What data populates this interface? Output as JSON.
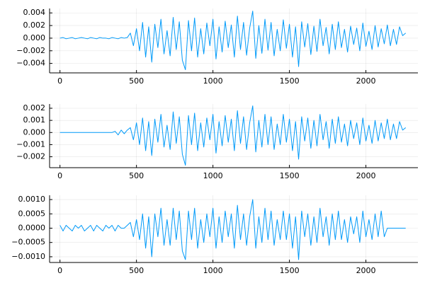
{
  "chart_data": [
    {
      "type": "line",
      "grid": true,
      "xlim": [
        -68,
        2340
      ],
      "xticks": [
        0,
        500,
        1000,
        1500,
        2000
      ],
      "ylim": [
        -0.0055,
        0.0047
      ],
      "yticks": [
        {
          "value": -0.004,
          "label": "−0.004"
        },
        {
          "value": -0.002,
          "label": "−0.002"
        },
        {
          "value": 0,
          "label": "0.000"
        },
        0.002,
        0.004
      ],
      "x": [
        0,
        20,
        40,
        60,
        80,
        100,
        120,
        140,
        160,
        180,
        200,
        220,
        240,
        260,
        280,
        300,
        320,
        340,
        360,
        380,
        400,
        420,
        440,
        460,
        480,
        500,
        520,
        540,
        560,
        580,
        600,
        620,
        640,
        660,
        680,
        700,
        720,
        740,
        760,
        780,
        800,
        820,
        840,
        860,
        880,
        900,
        920,
        940,
        960,
        980,
        1000,
        1020,
        1040,
        1060,
        1080,
        1100,
        1120,
        1140,
        1160,
        1180,
        1200,
        1220,
        1240,
        1260,
        1280,
        1300,
        1320,
        1340,
        1360,
        1380,
        1400,
        1420,
        1440,
        1460,
        1480,
        1500,
        1520,
        1540,
        1560,
        1580,
        1600,
        1620,
        1640,
        1660,
        1680,
        1700,
        1720,
        1740,
        1760,
        1780,
        1800,
        1820,
        1840,
        1860,
        1880,
        1900,
        1920,
        1940,
        1960,
        1980,
        2000,
        2020,
        2040,
        2060,
        2080,
        2100,
        2120,
        2140,
        2160,
        2180,
        2200,
        2220,
        2240,
        2260
      ],
      "series": [
        {
          "color": "#009af9",
          "values": [
            0,
            0.0001,
            -0.0001,
            0,
            0.0001,
            -0.0001,
            0,
            0.0001,
            0,
            -0.0001,
            0.0001,
            0,
            -0.0001,
            0.0001,
            0,
            0,
            -0.0001,
            0.0001,
            0,
            -0.0001,
            0.0001,
            0,
            0.0001,
            0.0008,
            -0.0012,
            0.0015,
            -0.002,
            0.0025,
            -0.003,
            0.0018,
            -0.0038,
            0.0022,
            -0.0015,
            0.003,
            -0.0025,
            0.0012,
            -0.0028,
            0.0033,
            -0.0018,
            0.0026,
            -0.0035,
            -0.005,
            0.0028,
            -0.002,
            0.0032,
            -0.003,
            0.0015,
            -0.0025,
            0.0024,
            -0.0012,
            0.003,
            -0.0033,
            0.0018,
            -0.0022,
            0.0027,
            -0.0015,
            0.0021,
            -0.003,
            0.0035,
            -0.0018,
            0.0025,
            -0.0027,
            0.0016,
            0.0043,
            -0.0032,
            0.002,
            -0.0024,
            0.003,
            -0.0019,
            0.0025,
            -0.0028,
            0.0014,
            -0.002,
            0.0029,
            -0.0016,
            0.0022,
            -0.003,
            0.0018,
            -0.0045,
            0.0026,
            -0.0014,
            0.0023,
            -0.0026,
            0.0019,
            -0.0021,
            0.003,
            -0.0012,
            0.0017,
            -0.0025,
            0.0022,
            -0.0018,
            0.0026,
            -0.0015,
            0.0014,
            -0.0022,
            0.0019,
            -0.001,
            0.0016,
            -0.002,
            0.0024,
            -0.0013,
            0.0011,
            -0.0018,
            0.002,
            -0.0014,
            0.0015,
            -0.0009,
            0.0021,
            -0.0012,
            0.0014,
            -0.001,
            0.0018,
            0.0004,
            0.0008
          ]
        }
      ]
    },
    {
      "type": "line",
      "grid": true,
      "xlim": [
        -68,
        2340
      ],
      "xticks": [
        0,
        500,
        1000,
        1500,
        2000
      ],
      "ylim": [
        -0.0029,
        0.00235
      ],
      "yticks": [
        {
          "value": -0.002,
          "label": "−0.002"
        },
        {
          "value": -0.001,
          "label": "−0.001"
        },
        {
          "value": 0,
          "label": "0.000"
        },
        0.001,
        0.002
      ],
      "x": [
        0,
        20,
        40,
        60,
        80,
        100,
        120,
        140,
        160,
        180,
        200,
        220,
        240,
        260,
        280,
        300,
        320,
        340,
        360,
        380,
        400,
        420,
        440,
        460,
        480,
        500,
        520,
        540,
        560,
        580,
        600,
        620,
        640,
        660,
        680,
        700,
        720,
        740,
        760,
        780,
        800,
        820,
        840,
        860,
        880,
        900,
        920,
        940,
        960,
        980,
        1000,
        1020,
        1040,
        1060,
        1080,
        1100,
        1120,
        1140,
        1160,
        1180,
        1200,
        1220,
        1240,
        1260,
        1280,
        1300,
        1320,
        1340,
        1360,
        1380,
        1400,
        1420,
        1440,
        1460,
        1480,
        1500,
        1520,
        1540,
        1560,
        1580,
        1600,
        1620,
        1640,
        1660,
        1680,
        1700,
        1720,
        1740,
        1760,
        1780,
        1800,
        1820,
        1840,
        1860,
        1880,
        1900,
        1920,
        1940,
        1960,
        1980,
        2000,
        2020,
        2040,
        2060,
        2080,
        2100,
        2120,
        2140,
        2160,
        2180,
        2200,
        2220,
        2240,
        2260
      ],
      "series": [
        {
          "color": "#009af9",
          "values": [
            0,
            0,
            0,
            0,
            0,
            0,
            0,
            0,
            0,
            0,
            0,
            0,
            0,
            0,
            0,
            0,
            0,
            0,
            0.0001,
            -0.0002,
            0.0002,
            -0.0001,
            0.0002,
            0.0004,
            -0.0006,
            0.0008,
            -0.001,
            0.0012,
            -0.0015,
            0.0009,
            -0.0019,
            0.0011,
            -0.0008,
            0.0015,
            -0.0012,
            0.0006,
            -0.0014,
            0.0017,
            -0.0009,
            0.0013,
            -0.0018,
            -0.0027,
            0.0014,
            -0.001,
            0.0016,
            -0.0015,
            0.0008,
            -0.0012,
            0.0012,
            -0.0006,
            0.0015,
            -0.0017,
            0.0009,
            -0.0011,
            0.0014,
            -0.0008,
            0.0011,
            -0.0015,
            0.0018,
            -0.0009,
            0.0013,
            -0.0014,
            0.0008,
            0.0022,
            -0.0016,
            0.001,
            -0.0012,
            0.0015,
            -0.001,
            0.0013,
            -0.0014,
            0.0007,
            -0.001,
            0.0015,
            -0.0008,
            0.0011,
            -0.0015,
            0.0009,
            -0.0022,
            0.0013,
            -0.0007,
            0.0012,
            -0.0013,
            0.001,
            -0.0011,
            0.0015,
            -0.0006,
            0.0009,
            -0.0013,
            0.0011,
            -0.0009,
            0.0013,
            -0.0008,
            0.0007,
            -0.0011,
            0.001,
            -0.0005,
            0.0008,
            -0.001,
            0.0012,
            -0.0007,
            0.0006,
            -0.0009,
            0.001,
            -0.0007,
            0.0008,
            -0.0005,
            0.0011,
            -0.0006,
            0.0007,
            -0.0005,
            0.0009,
            0.0002,
            0.0004
          ]
        }
      ]
    },
    {
      "type": "line",
      "grid": true,
      "xlim": [
        -68,
        2340
      ],
      "xticks": [
        0,
        500,
        1000,
        1500,
        2000
      ],
      "ylim": [
        -0.0012,
        0.00115
      ],
      "yticks": [
        {
          "value": -0.001,
          "label": "−0.0010"
        },
        {
          "value": -0.0005,
          "label": "−0.0005"
        },
        {
          "value": 0,
          "label": "0.0000"
        },
        0.0005,
        {
          "value": 0.001,
          "label": "0.0010"
        }
      ],
      "x": [
        0,
        20,
        40,
        60,
        80,
        100,
        120,
        140,
        160,
        180,
        200,
        220,
        240,
        260,
        280,
        300,
        320,
        340,
        360,
        380,
        400,
        420,
        440,
        460,
        480,
        500,
        520,
        540,
        560,
        580,
        600,
        620,
        640,
        660,
        680,
        700,
        720,
        740,
        760,
        780,
        800,
        820,
        840,
        860,
        880,
        900,
        920,
        940,
        960,
        980,
        1000,
        1020,
        1040,
        1060,
        1080,
        1100,
        1120,
        1140,
        1160,
        1180,
        1200,
        1220,
        1240,
        1260,
        1280,
        1300,
        1320,
        1340,
        1360,
        1380,
        1400,
        1420,
        1440,
        1460,
        1480,
        1500,
        1520,
        1540,
        1560,
        1580,
        1600,
        1620,
        1640,
        1660,
        1680,
        1700,
        1720,
        1740,
        1760,
        1780,
        1800,
        1820,
        1840,
        1860,
        1880,
        1900,
        1920,
        1940,
        1960,
        1980,
        2000,
        2020,
        2040,
        2060,
        2080,
        2100,
        2120,
        2140,
        2160,
        2180,
        2200,
        2220,
        2240,
        2260
      ],
      "series": [
        {
          "color": "#009af9",
          "values": [
            0.0001,
            -0.0001,
            0.0001,
            0,
            -0.0001,
            0.0001,
            0,
            0.0001,
            -0.0001,
            0,
            0.0001,
            -0.0001,
            0.0001,
            0,
            -0.0001,
            0.0001,
            0,
            0.0001,
            -0.0001,
            0.0001,
            0,
            0,
            0.0001,
            0.0002,
            -0.0003,
            0.0003,
            -0.0004,
            0.0005,
            -0.0007,
            0.0004,
            -0.001,
            0.0005,
            -0.0003,
            0.0007,
            -0.0006,
            0.0003,
            -0.0006,
            0.0007,
            -0.0004,
            0.0006,
            -0.0008,
            -0.0011,
            0.0006,
            -0.0004,
            0.0007,
            -0.0007,
            0.0003,
            -0.0005,
            0.0005,
            -0.0003,
            0.0007,
            -0.0007,
            0.0004,
            -0.0005,
            0.0006,
            -0.0003,
            0.0005,
            -0.0007,
            0.0008,
            -0.0004,
            0.0005,
            -0.0006,
            0.0004,
            0.001,
            -0.0007,
            0.0004,
            -0.0005,
            0.0007,
            -0.0004,
            0.0006,
            -0.0006,
            0.0003,
            -0.0004,
            0.0006,
            -0.0004,
            0.0005,
            -0.0007,
            0.0004,
            -0.0011,
            0.0006,
            -0.0003,
            0.0005,
            -0.0006,
            0.0004,
            -0.0005,
            0.0007,
            -0.0003,
            0.0004,
            -0.0006,
            0.0005,
            -0.0004,
            0.0006,
            -0.0004,
            0.0003,
            -0.0005,
            0.0004,
            -0.0002,
            0.0004,
            -0.0005,
            0.0006,
            -0.0003,
            0.0003,
            -0.0004,
            0.0005,
            -0.0003,
            0.0006,
            -0.0003,
            0,
            0,
            0,
            0,
            0,
            0,
            0
          ]
        }
      ]
    }
  ]
}
